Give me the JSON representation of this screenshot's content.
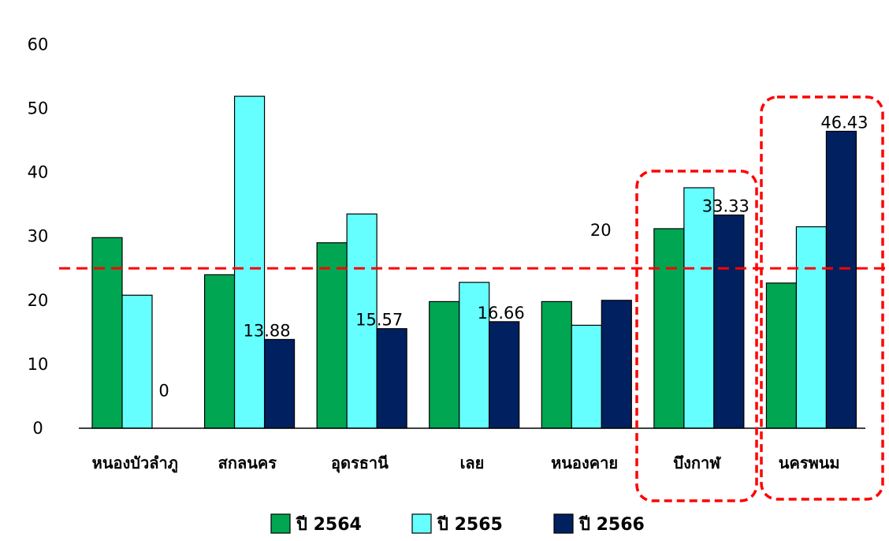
{
  "chart_data": {
    "type": "bar",
    "categories": [
      "หนองบัวลำภู",
      "สกลนคร",
      "อุดรธานี",
      "เลย",
      "หนองคาย",
      "บึงกาฬ",
      "นครพนม"
    ],
    "series": [
      {
        "name": "ปี 2564",
        "color": "#00A651",
        "values": [
          29.8,
          24.0,
          29.0,
          19.8,
          19.8,
          31.2,
          22.7
        ]
      },
      {
        "name": "ปี 2565",
        "color": "#66FFFF",
        "values": [
          20.8,
          51.9,
          33.5,
          22.8,
          16.1,
          37.6,
          31.5
        ]
      },
      {
        "name": "ปี 2566",
        "color": "#002060",
        "values": [
          0,
          13.88,
          15.57,
          16.66,
          20,
          33.33,
          46.43
        ]
      }
    ],
    "data_labels": [
      "0",
      "13.88",
      "15.57",
      "16.66",
      "20",
      "33.33",
      "46.43"
    ],
    "y_ticks": [
      "0",
      "10",
      "20",
      "30",
      "40",
      "50",
      "60"
    ],
    "ylim": [
      0,
      60
    ],
    "reference_line": {
      "value": 25,
      "color": "#FF0000",
      "style": "dashed"
    },
    "highlighted_categories": [
      "บึงกาฬ",
      "นครพนม"
    ],
    "highlight_color": "#FF0000",
    "legend_position": "bottom",
    "grid": false,
    "title": "",
    "xlabel": "",
    "ylabel": ""
  }
}
